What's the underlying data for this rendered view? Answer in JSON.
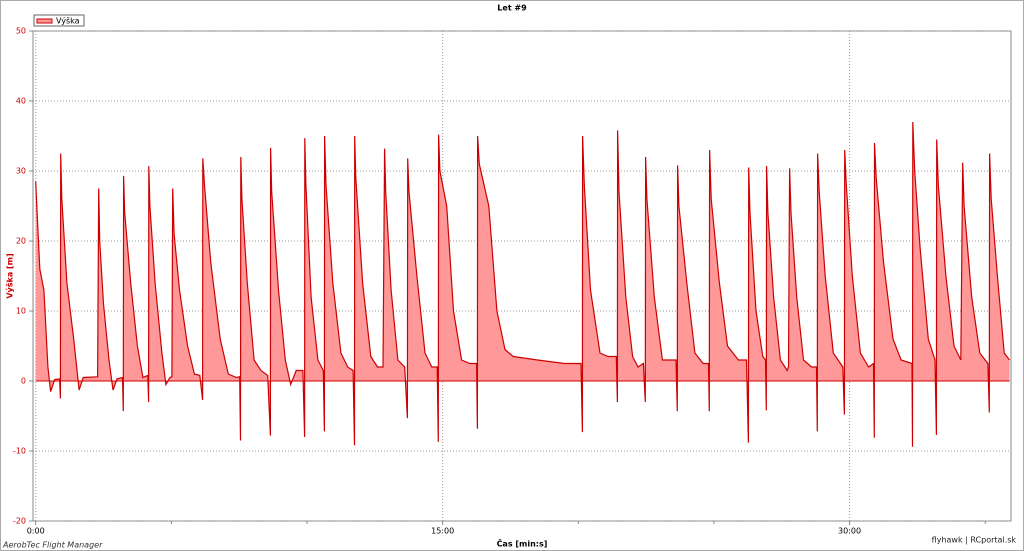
{
  "chart_data": {
    "type": "area",
    "title": "Let #9",
    "xlabel": "Čas [min:s]",
    "ylabel": "Výška [m]",
    "footer": "AerobTec Flight Manager",
    "watermark": "flyhawk | RCportal.sk",
    "legend": "top-left",
    "grid": true,
    "xlim": [
      -0.1,
      35.95
    ],
    "ylim": [
      -20,
      50
    ],
    "xticks": [
      {
        "value": 0,
        "label": "0:00"
      },
      {
        "value": 15,
        "label": "15:00"
      },
      {
        "value": 30,
        "label": "30:00"
      }
    ],
    "xminor_ticks": [
      5,
      10,
      20,
      25,
      35
    ],
    "yticks": [
      -20,
      -10,
      0,
      10,
      20,
      30,
      40,
      50
    ],
    "x": [
      0,
      0.05,
      0.15,
      0.3,
      0.45,
      0.55,
      0.7,
      0.88,
      0.91,
      0.92,
      0.96,
      1.15,
      1.4,
      1.6,
      1.75,
      2.28,
      2.32,
      2.36,
      2.5,
      2.7,
      2.85,
      3.0,
      3.2,
      3.23,
      3.24,
      3.28,
      3.5,
      3.75,
      3.95,
      4.13,
      4.16,
      4.17,
      4.21,
      4.4,
      4.65,
      4.8,
      4.95,
      5.02,
      5.05,
      5.1,
      5.3,
      5.6,
      5.85,
      6.05,
      6.15,
      6.16,
      6.22,
      6.45,
      6.8,
      7.1,
      7.4,
      7.52,
      7.55,
      7.56,
      7.6,
      7.8,
      8.05,
      8.3,
      8.55,
      8.65,
      8.66,
      8.7,
      8.95,
      9.2,
      9.4,
      9.6,
      9.85,
      9.91,
      9.92,
      9.96,
      10.15,
      10.4,
      10.6,
      10.64,
      10.65,
      10.7,
      10.95,
      11.25,
      11.5,
      11.7,
      11.75,
      11.76,
      11.8,
      12.05,
      12.35,
      12.6,
      12.8,
      12.86,
      12.9,
      13.1,
      13.35,
      13.6,
      13.7,
      13.71,
      13.76,
      14.05,
      14.35,
      14.6,
      14.8,
      14.84,
      14.85,
      14.9,
      15.15,
      15.4,
      15.7,
      16.0,
      16.25,
      16.28,
      16.29,
      16.35,
      16.7,
      17.0,
      17.3,
      17.6,
      18.5,
      19.5,
      20.1,
      20.15,
      20.16,
      20.22,
      20.45,
      20.8,
      21.1,
      21.4,
      21.44,
      21.45,
      21.5,
      21.75,
      22.0,
      22.2,
      22.4,
      22.47,
      22.48,
      22.53,
      22.8,
      23.1,
      23.4,
      23.6,
      23.65,
      23.66,
      23.71,
      24.0,
      24.3,
      24.6,
      24.8,
      24.83,
      24.84,
      24.9,
      25.2,
      25.5,
      25.9,
      26.2,
      26.27,
      26.28,
      26.33,
      26.55,
      26.8,
      26.9,
      26.93,
      26.94,
      26.99,
      27.2,
      27.45,
      27.7,
      27.75,
      27.79,
      27.84,
      28.05,
      28.3,
      28.6,
      28.78,
      28.81,
      28.82,
      28.88,
      29.1,
      29.4,
      29.75,
      29.81,
      29.82,
      29.88,
      30.1,
      30.4,
      30.7,
      30.88,
      30.91,
      30.92,
      30.98,
      31.25,
      31.6,
      31.9,
      32.3,
      32.32,
      32.33,
      32.4,
      32.6,
      32.9,
      33.15,
      33.2,
      33.21,
      33.27,
      33.55,
      33.85,
      34.1,
      34.17,
      34.22,
      34.5,
      34.8,
      35.1,
      35.15,
      35.16,
      35.22,
      35.45,
      35.7,
      35.9
    ],
    "series": [
      {
        "name": "Výška",
        "color": "#cc0000",
        "fill": "#ff9999",
        "values": [
          28.5,
          24,
          16,
          13,
          2,
          -1.5,
          0.2,
          0.3,
          -2.5,
          32.5,
          26,
          14,
          6,
          -1.3,
          0.5,
          0.6,
          27.5,
          20,
          11,
          3,
          -1.3,
          0.3,
          0.5,
          -4.3,
          29.3,
          24,
          14,
          5,
          0.5,
          0.8,
          -3,
          30.7,
          25,
          14,
          4,
          -0.5,
          0.5,
          0.6,
          27.5,
          21,
          13,
          5,
          1,
          0.8,
          -2.7,
          31.8,
          28,
          17,
          6,
          1,
          0.5,
          0.6,
          -8.5,
          32,
          26,
          14,
          3,
          1.5,
          0.8,
          -7.8,
          33.3,
          27,
          13,
          3,
          -0.5,
          1.5,
          1.5,
          -8,
          34.7,
          28,
          12,
          3,
          1.5,
          -7.2,
          35,
          28,
          14,
          4,
          2,
          1.5,
          -9.2,
          35,
          29,
          14,
          3.5,
          2,
          2,
          33.2,
          27,
          13,
          3,
          2,
          -5.3,
          31.8,
          27,
          15,
          4,
          2,
          2,
          -8.7,
          35.2,
          30,
          25,
          10,
          3,
          2.5,
          2.5,
          -6.8,
          35,
          31,
          25,
          10,
          4.5,
          3.5,
          3,
          2.5,
          2.5,
          -7.3,
          35,
          28,
          13,
          4,
          3.5,
          3.5,
          -3,
          35.8,
          27,
          12,
          3.5,
          2,
          2.5,
          -3,
          32,
          26,
          12,
          3,
          3,
          3,
          -4.3,
          30.8,
          25,
          14,
          4,
          2.5,
          2.5,
          -4.3,
          33,
          26,
          14,
          5,
          3,
          3,
          -8.8,
          30.5,
          24,
          10,
          3.5,
          3,
          -4.2,
          30.7,
          24,
          12,
          3,
          1.5,
          2,
          30.4,
          24,
          12,
          3,
          2,
          2,
          -7.2,
          32.5,
          27,
          15,
          4,
          2,
          -4.8,
          33,
          28,
          15,
          4,
          2,
          2.5,
          -8.1,
          34,
          29,
          17,
          6,
          3,
          2.5,
          -9.4,
          37,
          30,
          19,
          6,
          3,
          -7.7,
          34.5,
          28,
          15,
          5,
          3,
          31.2,
          25,
          12,
          4,
          2.5,
          -4.5,
          32.5,
          26,
          15,
          4,
          3
        ]
      }
    ]
  }
}
